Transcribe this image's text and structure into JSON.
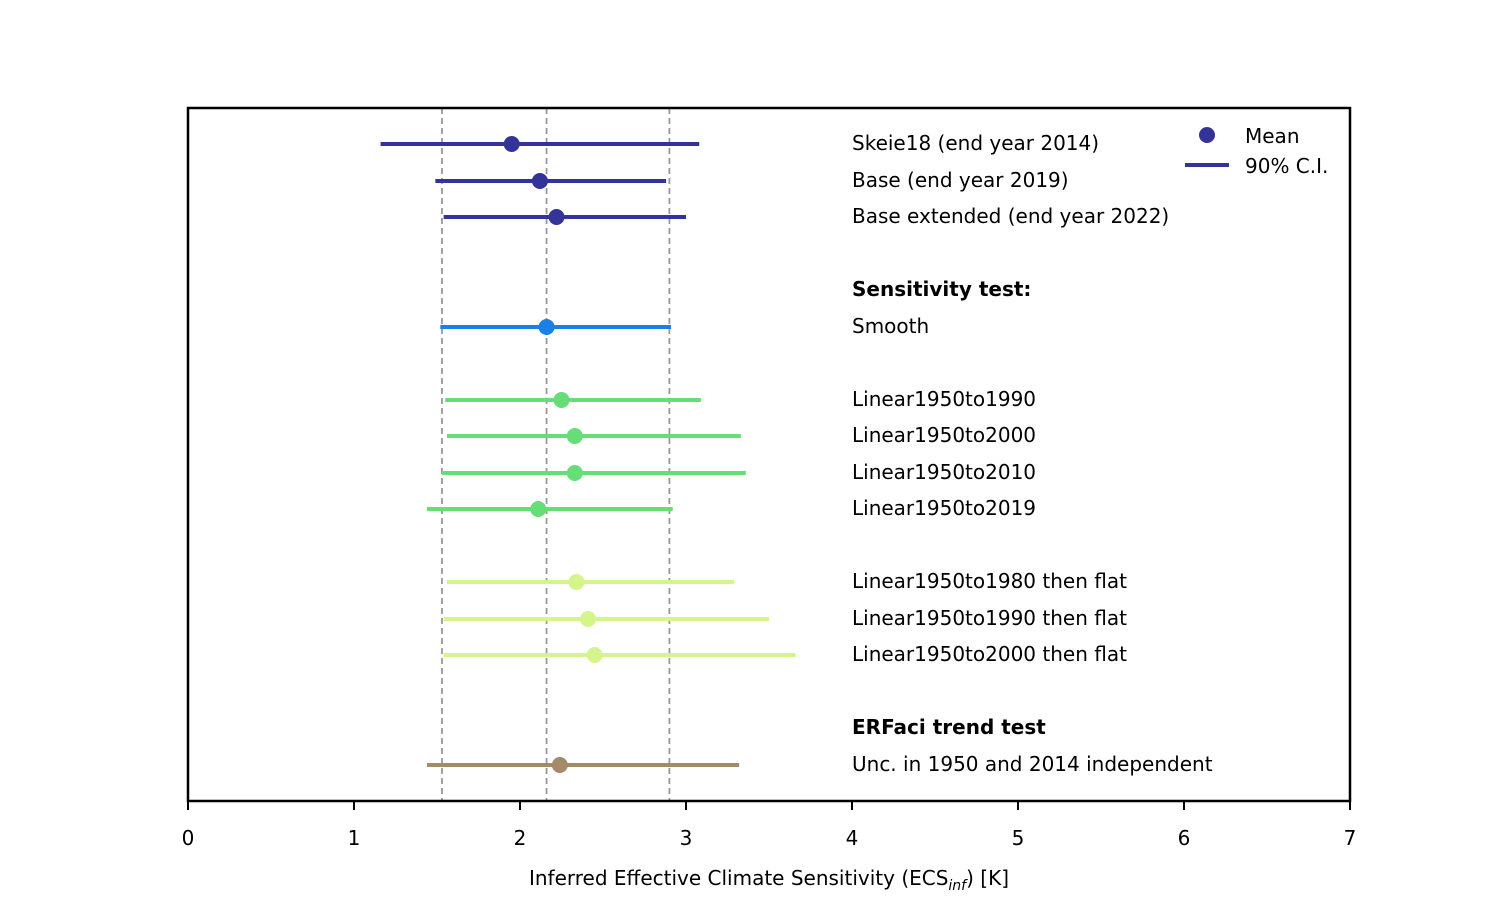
{
  "chart_data": {
    "type": "scatter",
    "subtype": "forest-plot",
    "title": "",
    "xlabel_main": "Inferred Effective Climate Sensitivity (ECS",
    "xlabel_sub": "inf",
    "xlabel_tail": ") [K]",
    "xlim": [
      0,
      7
    ],
    "xticks": [
      "0",
      "1",
      "2",
      "3",
      "4",
      "5",
      "6",
      "7"
    ],
    "reference_lines": [
      1.53,
      2.16,
      2.9
    ],
    "grid": false,
    "legend": {
      "placement": "top-right",
      "entries": [
        {
          "label": "Mean",
          "kind": "marker"
        },
        {
          "label": "90% C.I.",
          "kind": "line"
        }
      ],
      "color": "#333399"
    },
    "rows": [
      {
        "label": "Skeie18 (end year 2014)",
        "mean": 1.95,
        "low": 1.16,
        "high": 3.08,
        "color": "#333399"
      },
      {
        "label": "Base (end year 2019)",
        "mean": 2.12,
        "low": 1.49,
        "high": 2.88,
        "color": "#333399"
      },
      {
        "label": "Base extended (end year 2022)",
        "mean": 2.22,
        "low": 1.54,
        "high": 3.0,
        "color": "#333399"
      },
      {
        "label": "Sensitivity test:",
        "header": true
      },
      {
        "label": "Smooth",
        "mean": 2.16,
        "low": 1.52,
        "high": 2.91,
        "color": "#1a80e6"
      },
      {
        "label": "Linear1950to1990",
        "mean": 2.25,
        "low": 1.55,
        "high": 3.09,
        "color": "#66dd77"
      },
      {
        "label": "Linear1950to2000",
        "mean": 2.33,
        "low": 1.56,
        "high": 3.33,
        "color": "#66dd77"
      },
      {
        "label": "Linear1950to2010",
        "mean": 2.33,
        "low": 1.53,
        "high": 3.36,
        "color": "#66dd77"
      },
      {
        "label": "Linear1950to2019",
        "mean": 2.11,
        "low": 1.44,
        "high": 2.92,
        "color": "#66dd77"
      },
      {
        "label": "Linear1950to1980 then flat",
        "mean": 2.34,
        "low": 1.56,
        "high": 3.29,
        "color": "#d4f58c"
      },
      {
        "label": "Linear1950to1990 then flat",
        "mean": 2.41,
        "low": 1.54,
        "high": 3.5,
        "color": "#d4f58c"
      },
      {
        "label": "Linear1950to2000 then flat",
        "mean": 2.45,
        "low": 1.54,
        "high": 3.66,
        "color": "#d4f58c"
      },
      {
        "label": "ERFaci trend test",
        "header": true
      },
      {
        "label": "Unc. in 1950 and 2014 independent",
        "mean": 2.24,
        "low": 1.44,
        "high": 3.32,
        "color": "#a38a6b"
      }
    ]
  }
}
